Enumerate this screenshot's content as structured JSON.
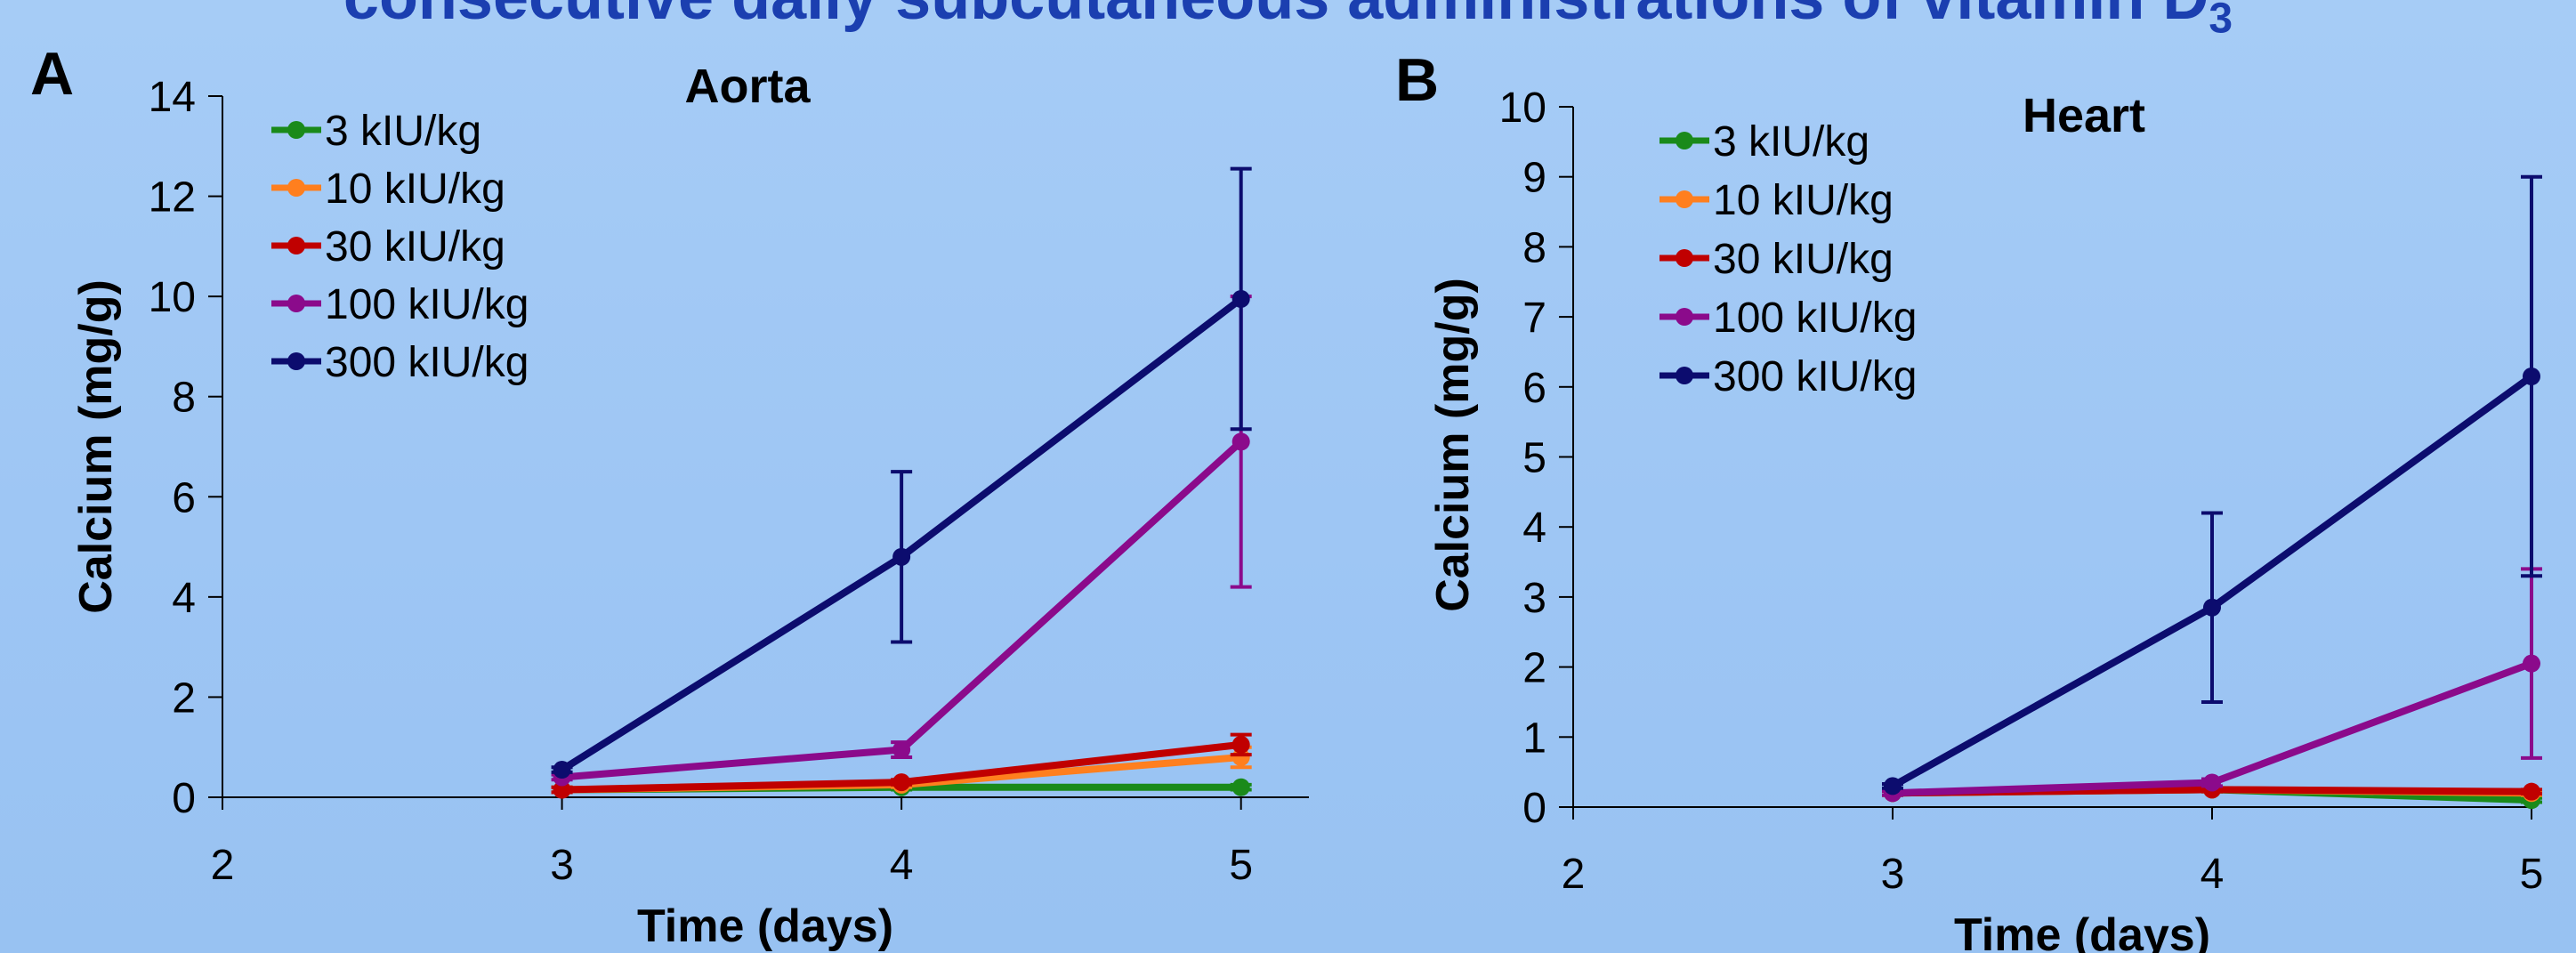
{
  "banner": {
    "text": "consecutive daily subcutaneous administrations of vitamin D",
    "subscript": "3"
  },
  "chart_data": [
    {
      "type": "line",
      "panel": "A",
      "title": "Aorta",
      "xlabel": "Time (days)",
      "ylabel": "Calcium (mg/g)",
      "xlim": [
        2,
        5.2
      ],
      "ylim": [
        0,
        14
      ],
      "xticks": [
        2,
        3,
        4,
        5
      ],
      "yticks": [
        0,
        2,
        4,
        6,
        8,
        10,
        12,
        14
      ],
      "legend_position": "top-left",
      "grid": false,
      "x": [
        3,
        4,
        5
      ],
      "series": [
        {
          "name": "3 kIU/kg",
          "color": "#1a8a1a",
          "values": [
            0.15,
            0.2,
            0.2
          ],
          "errors": [
            0.05,
            0.05,
            0.05
          ]
        },
        {
          "name": "10 kIU/kg",
          "color": "#ff7f1e",
          "values": [
            0.15,
            0.25,
            0.8
          ],
          "errors": [
            0.05,
            0.05,
            0.2
          ]
        },
        {
          "name": "30 kIU/kg",
          "color": "#c00000",
          "values": [
            0.15,
            0.3,
            1.05
          ],
          "errors": [
            0.05,
            0.05,
            0.2
          ]
        },
        {
          "name": "100 kIU/kg",
          "color": "#8b0a8b",
          "values": [
            0.4,
            0.95,
            7.1
          ],
          "errors": [
            0.05,
            0.15,
            2.9
          ]
        },
        {
          "name": "300 kIU/kg",
          "color": "#0c0c6e",
          "values": [
            0.55,
            4.8,
            9.95
          ],
          "errors": [
            0.05,
            1.7,
            2.6
          ]
        }
      ]
    },
    {
      "type": "line",
      "panel": "B",
      "title": "Heart",
      "xlabel": "Time (days)",
      "ylabel": "Calcium (mg/g)",
      "xlim": [
        2,
        5
      ],
      "ylim": [
        0,
        10
      ],
      "xticks": [
        2,
        3,
        4,
        5
      ],
      "yticks": [
        0,
        1,
        2,
        3,
        4,
        5,
        6,
        7,
        8,
        9,
        10
      ],
      "legend_position": "top-left",
      "grid": false,
      "x": [
        3,
        4,
        5
      ],
      "series": [
        {
          "name": "3 kIU/kg",
          "color": "#1a8a1a",
          "values": [
            0.2,
            0.25,
            0.1
          ],
          "errors": [
            0.03,
            0.03,
            0.03
          ]
        },
        {
          "name": "10 kIU/kg",
          "color": "#ff7f1e",
          "values": [
            0.2,
            0.25,
            0.2
          ],
          "errors": [
            0.03,
            0.03,
            0.03
          ]
        },
        {
          "name": "30 kIU/kg",
          "color": "#c00000",
          "values": [
            0.2,
            0.25,
            0.22
          ],
          "errors": [
            0.03,
            0.03,
            0.03
          ]
        },
        {
          "name": "100 kIU/kg",
          "color": "#8b0a8b",
          "values": [
            0.2,
            0.35,
            2.05
          ],
          "errors": [
            0.03,
            0.05,
            1.35
          ]
        },
        {
          "name": "300 kIU/kg",
          "color": "#0c0c6e",
          "values": [
            0.3,
            2.85,
            6.15
          ],
          "errors": [
            0.03,
            1.35,
            2.85
          ]
        }
      ]
    }
  ]
}
